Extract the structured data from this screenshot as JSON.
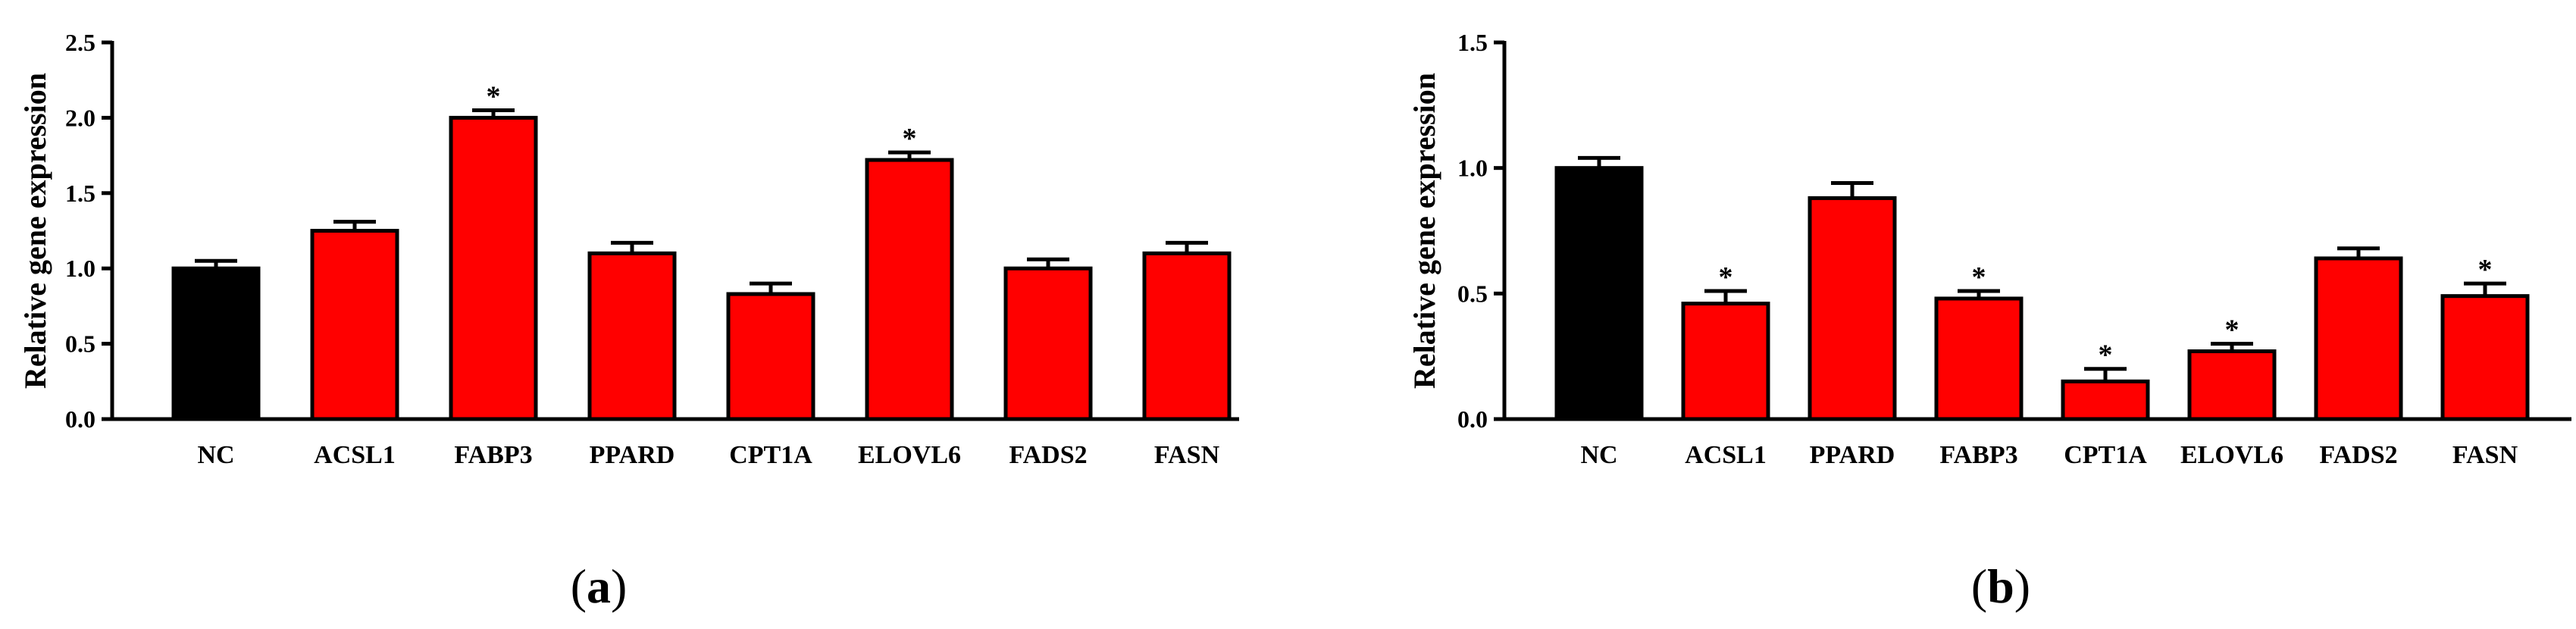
{
  "chart_data": [
    {
      "type": "bar",
      "panel_label": "a",
      "ylabel": "Relative gene expression",
      "ylim": [
        0,
        2.5
      ],
      "yticks": [
        "0.0",
        "0.5",
        "1.0",
        "1.5",
        "2.0",
        "2.5"
      ],
      "categories": [
        "NC",
        "ACSL1",
        "FABP3",
        "PPARD",
        "CPT1A",
        "ELOVL6",
        "FADS2",
        "FASN"
      ],
      "values": [
        1.0,
        1.25,
        2.0,
        1.1,
        0.83,
        1.72,
        1.0,
        1.1
      ],
      "errors": [
        0.05,
        0.06,
        0.05,
        0.07,
        0.07,
        0.05,
        0.06,
        0.07
      ],
      "significance": [
        "",
        "",
        "*",
        "",
        "",
        "*",
        "",
        ""
      ],
      "colors": [
        "#000000",
        "#ff0000",
        "#ff0000",
        "#ff0000",
        "#ff0000",
        "#ff0000",
        "#ff0000",
        "#ff0000"
      ]
    },
    {
      "type": "bar",
      "panel_label": "b",
      "ylabel": "Relative gene expression",
      "ylim": [
        0,
        1.5
      ],
      "yticks": [
        "0.0",
        "0.5",
        "1.0",
        "1.5"
      ],
      "categories": [
        "NC",
        "ACSL1",
        "PPARD",
        "FABP3",
        "CPT1A",
        "ELOVL6",
        "FADS2",
        "FASN"
      ],
      "values": [
        1.0,
        0.46,
        0.88,
        0.48,
        0.15,
        0.27,
        0.64,
        0.49
      ],
      "errors": [
        0.04,
        0.05,
        0.06,
        0.03,
        0.05,
        0.03,
        0.04,
        0.05
      ],
      "significance": [
        "",
        "*",
        "",
        "*",
        "*",
        "*",
        "",
        "*"
      ],
      "colors": [
        "#000000",
        "#ff0000",
        "#ff0000",
        "#ff0000",
        "#ff0000",
        "#ff0000",
        "#ff0000",
        "#ff0000"
      ]
    }
  ]
}
